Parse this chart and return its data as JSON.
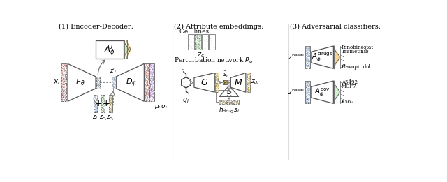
{
  "bg_color": "#ffffff",
  "section_titles": [
    "(1) Encoder-Decoder:",
    "(2) Attribute embeddings:",
    "(3) Adversarial classifiers:"
  ],
  "pink_color": "#f2a0a0",
  "blue_color": "#a8c8f0",
  "green_color": "#a8dca8",
  "orange_color": "#f0c060",
  "purple_color": "#d0a8f0",
  "gold_color": "#e8c040",
  "light_green_color": "#b8e8b8",
  "dark_color": "#333333",
  "gray_color": "#888888"
}
